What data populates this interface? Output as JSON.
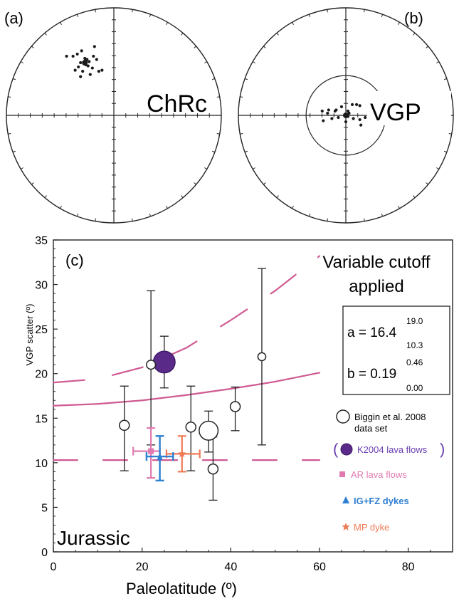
{
  "panel_a": {
    "label": "(a)",
    "title": "ChRc",
    "type": "stereonet",
    "points": [
      [
        -0.44,
        0.55
      ],
      [
        -0.38,
        0.55
      ],
      [
        -0.34,
        0.57
      ],
      [
        -0.3,
        0.6
      ],
      [
        -0.27,
        0.53
      ],
      [
        -0.31,
        0.49
      ],
      [
        -0.33,
        0.45
      ],
      [
        -0.36,
        0.42
      ],
      [
        -0.29,
        0.41
      ],
      [
        -0.26,
        0.47
      ],
      [
        -0.23,
        0.5
      ],
      [
        -0.2,
        0.44
      ],
      [
        -0.19,
        0.55
      ],
      [
        -0.18,
        0.64
      ],
      [
        -0.16,
        0.52
      ],
      [
        -0.22,
        0.38
      ],
      [
        -0.14,
        0.41
      ],
      [
        -0.11,
        0.42
      ],
      [
        -0.31,
        0.36
      ],
      [
        -0.24,
        0.46
      ],
      [
        -0.28,
        0.48
      ],
      [
        -0.25,
        0.52
      ]
    ],
    "mean": [
      -0.27,
      0.49
    ]
  },
  "panel_b": {
    "label": "(b)",
    "title": "VGP",
    "type": "stereonet",
    "cutoff_radius": 0.37,
    "points": [
      [
        -0.22,
        0.04
      ],
      [
        -0.16,
        0.05
      ],
      [
        -0.1,
        0.04
      ],
      [
        -0.04,
        0.08
      ],
      [
        0.06,
        0.1
      ],
      [
        0.1,
        0.1
      ],
      [
        0.13,
        0.09
      ],
      [
        -0.21,
        -0.05
      ],
      [
        -0.13,
        -0.03
      ],
      [
        -0.07,
        -0.02
      ],
      [
        0.02,
        -0.01
      ],
      [
        0.07,
        -0.03
      ],
      [
        0.13,
        -0.04
      ],
      [
        0.18,
        -0.02
      ],
      [
        -0.17,
        0.02
      ],
      [
        0.03,
        0.02
      ],
      [
        0.0,
        -0.06
      ],
      [
        0.14,
        -0.09
      ],
      [
        -0.09,
        0.05
      ],
      [
        0.02,
        0.04
      ]
    ],
    "mean": [
      0.0,
      0.0
    ]
  },
  "panel_c": {
    "label": "(c)",
    "era_label": "Jurassic",
    "xlabel": "Paleolatitude (º)",
    "ylabel": "VGP scatter (º)",
    "xlim": [
      0,
      90
    ],
    "ylim": [
      0,
      35
    ],
    "xticks": [
      0,
      20,
      40,
      60,
      80
    ],
    "yticks": [
      0,
      5,
      10,
      15,
      20,
      25,
      30,
      35
    ],
    "note_line1": "Variable cutoff",
    "note_line2": "applied",
    "param_box": {
      "a_label": "a = 16.4",
      "a_upper": "19.0",
      "a_lower": "10.3",
      "b_label": "b = 0.19",
      "b_upper": "0.46",
      "b_lower": "0.00"
    },
    "legend": {
      "biggin_line1": "Biggin et al. 2008",
      "biggin_line2": "data set",
      "k2004": "K2004 lava flows",
      "ar": "AR lava flows",
      "ig": "IG+FZ dykes",
      "mp": "MP dyke"
    },
    "colors": {
      "curve": "#cf5a91",
      "k2004": "#5a2a88",
      "ar": "#e07ab0",
      "ig": "#2f7fd2",
      "mp": "#ef7a55",
      "axis": "#222222"
    }
  },
  "chart_data": {
    "type": "scatter",
    "title": "",
    "xlabel": "Paleolatitude (º)",
    "ylabel": "VGP scatter (º)",
    "xlim": [
      0,
      90
    ],
    "ylim": [
      0,
      35
    ],
    "grid": false,
    "legend_position": "right",
    "series": [
      {
        "name": "Biggin et al. 2008 data set",
        "points": [
          {
            "x": 16,
            "y": 14.2,
            "low": 9.1,
            "high": 18.6,
            "size": 1.0
          },
          {
            "x": 22,
            "y": 21.0,
            "low": 12.0,
            "high": 29.3,
            "size": 0.9
          },
          {
            "x": 31,
            "y": 14.0,
            "low": 9.1,
            "high": 18.6,
            "size": 1.0
          },
          {
            "x": 35,
            "y": 13.6,
            "low": 11.2,
            "high": 15.8,
            "size": 1.9
          },
          {
            "x": 36,
            "y": 9.3,
            "low": 5.8,
            "high": 12.9,
            "size": 1.0
          },
          {
            "x": 41,
            "y": 16.3,
            "low": 13.6,
            "high": 18.5,
            "size": 1.0
          },
          {
            "x": 47,
            "y": 21.9,
            "low": 12.0,
            "high": 31.8,
            "size": 0.8
          }
        ]
      },
      {
        "name": "K2004 lava flows",
        "points": [
          {
            "x": 25,
            "y": 21.3,
            "low": 18.4,
            "high": 24.2,
            "size": 1.9
          }
        ]
      },
      {
        "name": "AR lava flows",
        "points": [
          {
            "x": 22,
            "y": 11.3,
            "low": 8.3,
            "high": 13.9,
            "xlow": 18,
            "xhigh": 24
          }
        ]
      },
      {
        "name": "IG+FZ dykes",
        "points": [
          {
            "x": 24,
            "y": 10.7,
            "low": 8.0,
            "high": 13.0,
            "xlow": 21,
            "xhigh": 27
          }
        ]
      },
      {
        "name": "MP dyke",
        "points": [
          {
            "x": 29,
            "y": 11.0,
            "low": 9.0,
            "high": 13.0,
            "xlow": 25.5,
            "xhigh": 33
          }
        ]
      }
    ],
    "curves": [
      {
        "style": "solid",
        "x": [
          0,
          10,
          20,
          30,
          40,
          50,
          60
        ],
        "y": [
          16.4,
          16.6,
          17.0,
          17.6,
          18.3,
          19.1,
          20.1
        ]
      },
      {
        "style": "dashed",
        "x": [
          0,
          10,
          20,
          30,
          40,
          50,
          60
        ],
        "y": [
          19.0,
          19.4,
          20.7,
          22.9,
          26.0,
          29.3,
          33.2
        ]
      },
      {
        "style": "dashed",
        "x": [
          0,
          60
        ],
        "y": [
          10.3,
          10.3
        ]
      }
    ]
  }
}
